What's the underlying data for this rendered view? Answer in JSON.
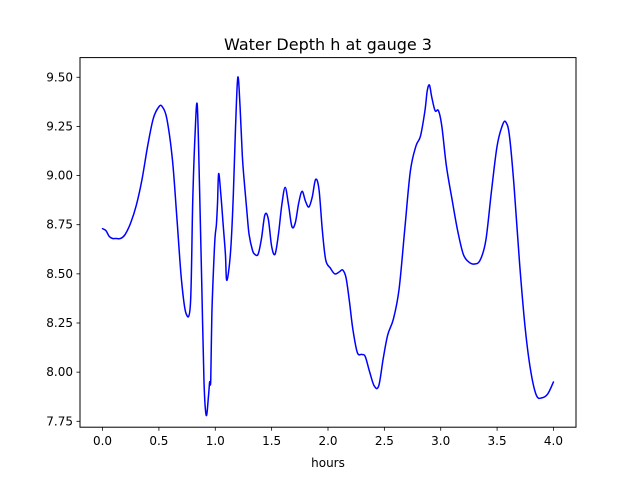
{
  "chart_data": {
    "type": "line",
    "title": "Water Depth h at gauge 3",
    "xlabel": "hours",
    "ylabel": "",
    "xlim": [
      -0.2,
      4.2
    ],
    "ylim": [
      7.72,
      9.6
    ],
    "xticks": [
      0.0,
      0.5,
      1.0,
      1.5,
      2.0,
      2.5,
      3.0,
      3.5,
      4.0
    ],
    "xtick_labels": [
      "0.0",
      "0.5",
      "1.0",
      "1.5",
      "2.0",
      "2.5",
      "3.0",
      "3.5",
      "4.0"
    ],
    "yticks": [
      7.75,
      8.0,
      8.25,
      8.5,
      8.75,
      9.0,
      9.25,
      9.5
    ],
    "ytick_labels": [
      "7.75",
      "8.00",
      "8.25",
      "8.50",
      "8.75",
      "9.00",
      "9.25",
      "9.50"
    ],
    "grid": false,
    "legend": "none",
    "series": [
      {
        "color": "#0000ff",
        "x": [
          0.0,
          0.03,
          0.06,
          0.09,
          0.12,
          0.16,
          0.2,
          0.25,
          0.3,
          0.35,
          0.4,
          0.45,
          0.5,
          0.53,
          0.57,
          0.62,
          0.66,
          0.7,
          0.74,
          0.78,
          0.8,
          0.82,
          0.84,
          0.86,
          0.88,
          0.9,
          0.92,
          0.94,
          0.95,
          0.96,
          0.97,
          0.99,
          1.0,
          1.01,
          1.02,
          1.03,
          1.05,
          1.07,
          1.09,
          1.1,
          1.12,
          1.14,
          1.16,
          1.18,
          1.2,
          1.22,
          1.24,
          1.26,
          1.28,
          1.3,
          1.33,
          1.35,
          1.38,
          1.41,
          1.44,
          1.47,
          1.5,
          1.53,
          1.56,
          1.59,
          1.62,
          1.65,
          1.68,
          1.71,
          1.74,
          1.77,
          1.8,
          1.83,
          1.86,
          1.89,
          1.92,
          1.95,
          1.98,
          2.02,
          2.06,
          2.1,
          2.13,
          2.16,
          2.19,
          2.22,
          2.26,
          2.3,
          2.33,
          2.37,
          2.41,
          2.45,
          2.49,
          2.53,
          2.58,
          2.63,
          2.68,
          2.73,
          2.78,
          2.82,
          2.86,
          2.88,
          2.9,
          2.92,
          2.95,
          2.98,
          3.01,
          3.05,
          3.1,
          3.15,
          3.2,
          3.25,
          3.3,
          3.35,
          3.4,
          3.45,
          3.5,
          3.55,
          3.58,
          3.61,
          3.65,
          3.7,
          3.75,
          3.8,
          3.85,
          3.9,
          3.95,
          4.0
        ],
        "y": [
          8.73,
          8.72,
          8.69,
          8.68,
          8.68,
          8.68,
          8.7,
          8.76,
          8.85,
          8.98,
          9.15,
          9.29,
          9.35,
          9.35,
          9.29,
          9.08,
          8.78,
          8.47,
          8.3,
          8.35,
          8.87,
          9.2,
          9.36,
          8.95,
          8.45,
          7.95,
          7.78,
          7.88,
          7.95,
          7.96,
          8.3,
          8.6,
          8.7,
          8.75,
          8.86,
          9.01,
          8.9,
          8.75,
          8.6,
          8.47,
          8.52,
          8.65,
          8.9,
          9.25,
          9.5,
          9.35,
          9.1,
          8.95,
          8.82,
          8.7,
          8.62,
          8.6,
          8.6,
          8.68,
          8.8,
          8.78,
          8.64,
          8.6,
          8.7,
          8.85,
          8.94,
          8.85,
          8.74,
          8.76,
          8.86,
          8.92,
          8.87,
          8.84,
          8.89,
          8.98,
          8.93,
          8.72,
          8.57,
          8.53,
          8.5,
          8.51,
          8.52,
          8.48,
          8.36,
          8.22,
          8.1,
          8.09,
          8.08,
          8.0,
          7.93,
          7.93,
          8.07,
          8.19,
          8.27,
          8.42,
          8.72,
          9.02,
          9.15,
          9.2,
          9.33,
          9.43,
          9.46,
          9.4,
          9.33,
          9.33,
          9.25,
          9.05,
          8.88,
          8.72,
          8.6,
          8.56,
          8.55,
          8.57,
          8.67,
          8.92,
          9.15,
          9.26,
          9.27,
          9.2,
          8.95,
          8.55,
          8.22,
          8.0,
          7.88,
          7.87,
          7.89,
          7.95
        ]
      }
    ]
  }
}
